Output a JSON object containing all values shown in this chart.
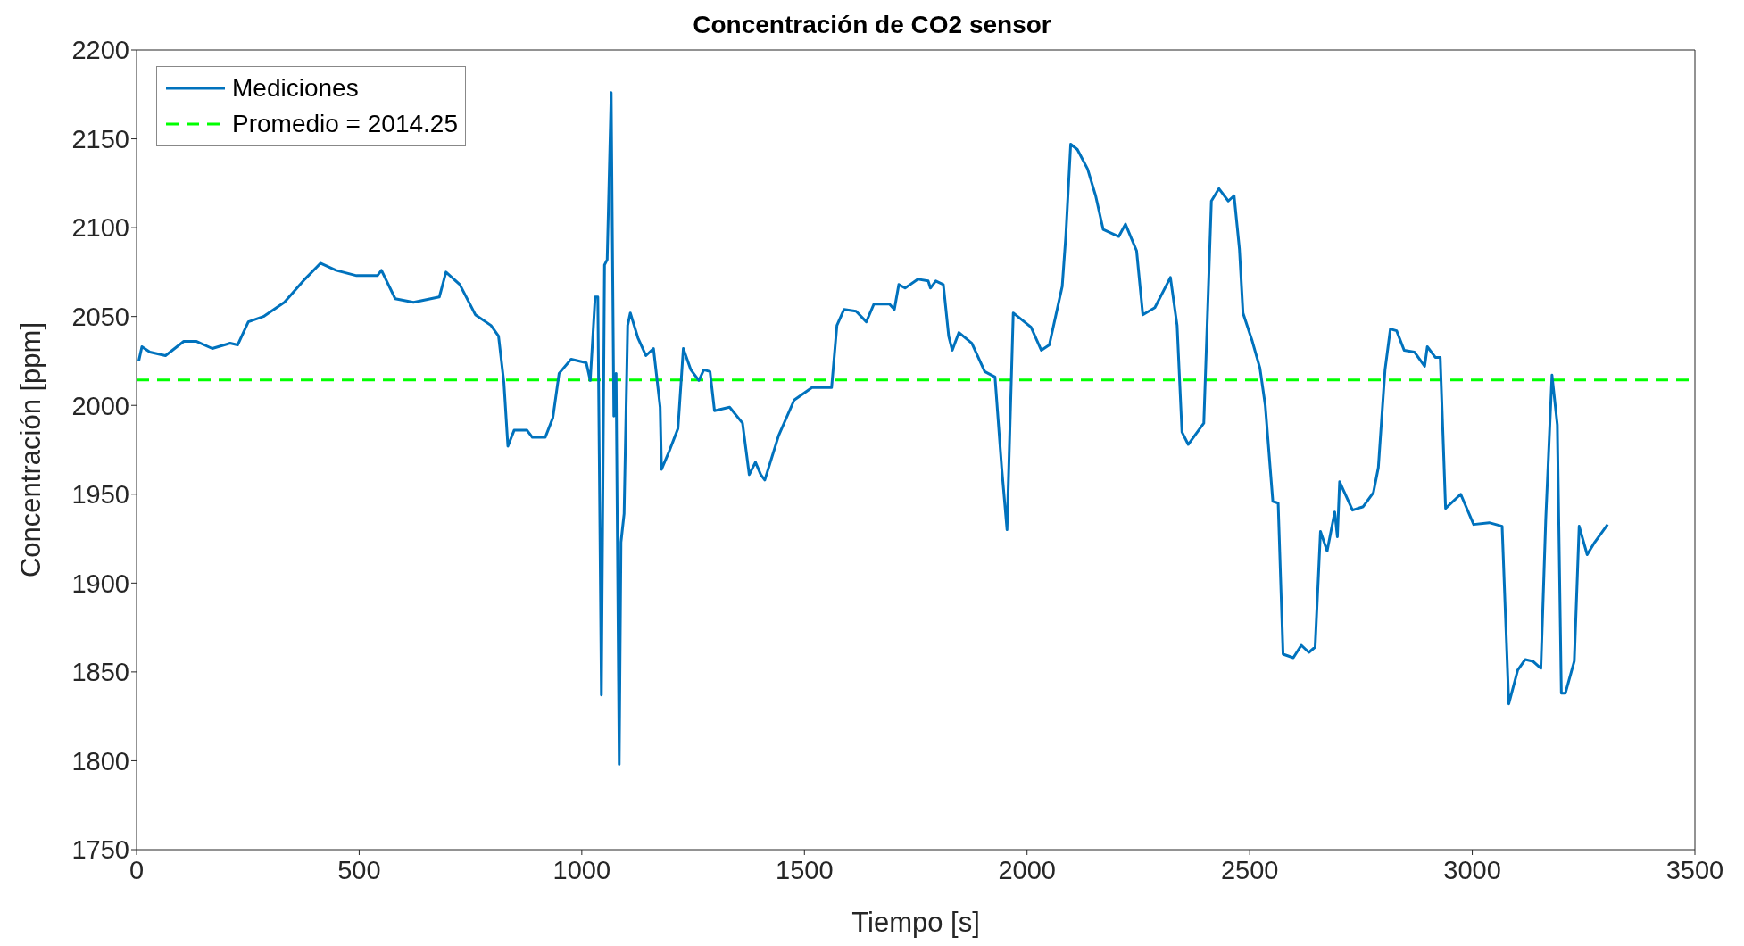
{
  "chart_data": {
    "type": "line",
    "title": "Concentración de CO2 sensor",
    "xlabel": "Tiempo [s]",
    "ylabel": "Concentración [ppm]",
    "x": [
      5,
      12,
      30,
      65,
      106,
      135,
      170,
      210,
      227,
      251,
      285,
      332,
      378,
      413,
      448,
      494,
      541,
      550,
      581,
      622,
      680,
      695,
      726,
      761,
      796,
      813,
      825,
      834,
      848,
      877,
      889,
      918,
      935,
      949,
      976,
      1010,
      1019,
      1030,
      1036,
      1044,
      1051,
      1057,
      1066,
      1072,
      1077,
      1084,
      1088,
      1095,
      1103,
      1109,
      1126,
      1144,
      1161,
      1176,
      1179,
      1196,
      1216,
      1228,
      1245,
      1263,
      1274,
      1288,
      1298,
      1332,
      1361,
      1376,
      1390,
      1402,
      1411,
      1442,
      1477,
      1517,
      1561,
      1573,
      1589,
      1616,
      1639,
      1656,
      1691,
      1702,
      1712,
      1726,
      1755,
      1778,
      1783,
      1795,
      1812,
      1824,
      1832,
      1847,
      1876,
      1905,
      1928,
      1943,
      1955,
      1969,
      2009,
      2032,
      2050,
      2079,
      2087,
      2098,
      2113,
      2136,
      2154,
      2171,
      2206,
      2221,
      2246,
      2260,
      2287,
      2322,
      2337,
      2348,
      2362,
      2397,
      2414,
      2431,
      2452,
      2465,
      2477,
      2485,
      2506,
      2523,
      2535,
      2552,
      2564,
      2575,
      2598,
      2616,
      2633,
      2647,
      2659,
      2674,
      2691,
      2697,
      2702,
      2731,
      2755,
      2778,
      2789,
      2804,
      2816,
      2830,
      2847,
      2870,
      2893,
      2899,
      2917,
      2928,
      2940,
      2974,
      3003,
      3038,
      3067,
      3082,
      3102,
      3119,
      3136,
      3154,
      3165,
      3179,
      3191,
      3200,
      3209,
      3229,
      3240,
      3258,
      3275,
      3304
    ],
    "series": [
      {
        "name": "Mediciones",
        "color": "#0072bd",
        "values": [
          2025,
          2033,
          2030,
          2028,
          2036,
          2036,
          2032,
          2035,
          2034,
          2047,
          2050,
          2058,
          2071,
          2080,
          2076,
          2073,
          2073,
          2076,
          2060,
          2058,
          2061,
          2075,
          2068,
          2051,
          2045,
          2039,
          2013,
          1977,
          1986,
          1986,
          1982,
          1982,
          1993,
          2018,
          2026,
          2024,
          2014,
          2061,
          2061,
          1837,
          2079,
          2082,
          2176,
          1994,
          2018,
          1798,
          1923,
          1939,
          2045,
          2052,
          2038,
          2028,
          2032,
          1999,
          1964,
          1974,
          1987,
          2032,
          2020,
          2014,
          2020,
          2019,
          1997,
          1999,
          1990,
          1961,
          1968,
          1961,
          1958,
          1983,
          2003,
          2010,
          2010,
          2045,
          2054,
          2053,
          2047,
          2057,
          2057,
          2054,
          2068,
          2066,
          2071,
          2070,
          2066,
          2070,
          2068,
          2039,
          2031,
          2041,
          2035,
          2019,
          2016,
          1965,
          1930,
          2052,
          2044,
          2031,
          2034,
          2067,
          2095,
          2147,
          2144,
          2133,
          2118,
          2099,
          2095,
          2102,
          2087,
          2051,
          2055,
          2072,
          2045,
          1985,
          1978,
          1990,
          2115,
          2122,
          2115,
          2118,
          2088,
          2052,
          2036,
          2021,
          2000,
          1946,
          1945,
          1860,
          1858,
          1865,
          1861,
          1864,
          1929,
          1918,
          1940,
          1926,
          1957,
          1941,
          1943,
          1951,
          1965,
          2020,
          2043,
          2042,
          2031,
          2030,
          2022,
          2033,
          2027,
          2027,
          1942,
          1950,
          1933,
          1934,
          1932,
          1832,
          1851,
          1857,
          1856,
          1852,
          1936,
          2017,
          1989,
          1838,
          1838,
          1856,
          1932,
          1916,
          1923,
          1933
        ]
      }
    ],
    "ref_lines": [
      {
        "axis": "y",
        "value": 2014.25,
        "label": "Promedio = 2014.25",
        "color": "#00ff00",
        "line_style": "dashed"
      }
    ],
    "xlim": [
      0,
      3500
    ],
    "xticks": [
      0,
      500,
      1000,
      1500,
      2000,
      2500,
      3000,
      3500
    ],
    "ylim": [
      1750,
      2200
    ],
    "yticks": [
      1750,
      1800,
      1850,
      1900,
      1950,
      2000,
      2050,
      2100,
      2150,
      2200
    ],
    "legend": "top left",
    "grid": false,
    "marker": "none",
    "line_style": "solid"
  }
}
